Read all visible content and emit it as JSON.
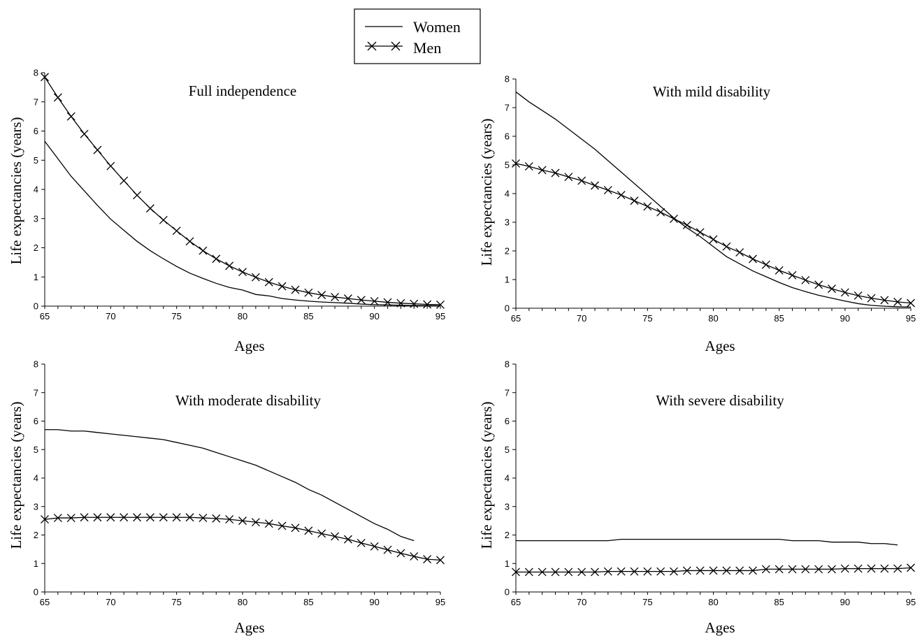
{
  "legend": {
    "entries": [
      {
        "label": "Women",
        "marker": "none"
      },
      {
        "label": "Men",
        "marker": "x"
      }
    ]
  },
  "chart_data": [
    {
      "type": "line",
      "title": "Full independence",
      "xlabel": "Ages",
      "ylabel": "Life expectancies (years)",
      "xlim": [
        65,
        95
      ],
      "ylim": [
        0,
        8
      ],
      "x": [
        65,
        66,
        67,
        68,
        69,
        70,
        71,
        72,
        73,
        74,
        75,
        76,
        77,
        78,
        79,
        80,
        81,
        82,
        83,
        84,
        85,
        86,
        87,
        88,
        89,
        90,
        91,
        92,
        93,
        94,
        95
      ],
      "series": [
        {
          "name": "Women",
          "marker": "none",
          "values": [
            5.65,
            5.05,
            4.45,
            3.95,
            3.45,
            2.98,
            2.6,
            2.22,
            1.9,
            1.62,
            1.36,
            1.13,
            0.95,
            0.78,
            0.64,
            0.55,
            0.4,
            0.35,
            0.26,
            0.21,
            0.17,
            0.14,
            0.12,
            0.1,
            0.07,
            0.05,
            0.04,
            0.03,
            0.02,
            0.02,
            0.01
          ]
        },
        {
          "name": "Men",
          "marker": "x",
          "values": [
            7.85,
            7.15,
            6.5,
            5.9,
            5.35,
            4.8,
            4.3,
            3.8,
            3.35,
            2.95,
            2.58,
            2.22,
            1.9,
            1.62,
            1.38,
            1.17,
            0.99,
            0.82,
            0.68,
            0.56,
            0.46,
            0.38,
            0.31,
            0.26,
            0.21,
            0.17,
            0.13,
            0.1,
            0.08,
            0.06,
            0.05
          ]
        }
      ],
      "y_ticks": [
        "0",
        "1",
        "2",
        "3",
        "4",
        "5",
        "6",
        "7",
        "8"
      ],
      "x_ticks": [
        "65",
        "70",
        "75",
        "80",
        "85",
        "90",
        "95"
      ]
    },
    {
      "type": "line",
      "title": "With mild disability",
      "xlabel": "Ages",
      "ylabel": "Life expectancies (years)",
      "xlim": [
        65,
        95
      ],
      "ylim": [
        0,
        8
      ],
      "x": [
        65,
        66,
        67,
        68,
        69,
        70,
        71,
        72,
        73,
        74,
        75,
        76,
        77,
        78,
        79,
        80,
        81,
        82,
        83,
        84,
        85,
        86,
        87,
        88,
        89,
        90,
        91,
        92,
        93,
        94,
        95
      ],
      "series": [
        {
          "name": "Women",
          "marker": "none",
          "values": [
            7.55,
            7.2,
            6.9,
            6.6,
            6.25,
            5.9,
            5.55,
            5.15,
            4.75,
            4.35,
            3.95,
            3.55,
            3.15,
            2.8,
            2.5,
            2.15,
            1.8,
            1.55,
            1.3,
            1.1,
            0.9,
            0.72,
            0.58,
            0.45,
            0.35,
            0.25,
            0.16,
            0.1,
            0.07,
            0.05,
            0.04
          ]
        },
        {
          "name": "Men",
          "marker": "x",
          "values": [
            5.05,
            4.95,
            4.82,
            4.72,
            4.58,
            4.45,
            4.28,
            4.12,
            3.95,
            3.75,
            3.55,
            3.35,
            3.12,
            2.9,
            2.65,
            2.4,
            2.15,
            1.95,
            1.72,
            1.52,
            1.32,
            1.15,
            0.98,
            0.82,
            0.68,
            0.55,
            0.44,
            0.35,
            0.28,
            0.22,
            0.18
          ]
        }
      ],
      "y_ticks": [
        "0",
        "1",
        "2",
        "3",
        "4",
        "5",
        "6",
        "7",
        "8"
      ],
      "x_ticks": [
        "65",
        "70",
        "75",
        "80",
        "85",
        "90",
        "95"
      ]
    },
    {
      "type": "line",
      "title": "With moderate disability",
      "xlabel": "Ages",
      "ylabel": "Life expectancies (years)",
      "xlim": [
        65,
        95
      ],
      "ylim": [
        0,
        8
      ],
      "x": [
        65,
        66,
        67,
        68,
        69,
        70,
        71,
        72,
        73,
        74,
        75,
        76,
        77,
        78,
        79,
        80,
        81,
        82,
        83,
        84,
        85,
        86,
        87,
        88,
        89,
        90,
        91,
        92,
        93,
        94,
        95
      ],
      "series": [
        {
          "name": "Women",
          "marker": "none",
          "values": [
            5.7,
            5.7,
            5.65,
            5.65,
            5.6,
            5.55,
            5.5,
            5.45,
            5.4,
            5.35,
            5.25,
            5.15,
            5.05,
            4.9,
            4.75,
            4.6,
            4.45,
            4.25,
            4.05,
            3.85,
            3.6,
            3.4,
            3.15,
            2.9,
            2.65,
            2.4,
            2.2,
            1.95,
            1.8,
            null,
            null
          ]
        },
        {
          "name": "Men",
          "marker": "x",
          "values": [
            2.55,
            2.6,
            2.6,
            2.62,
            2.62,
            2.62,
            2.62,
            2.62,
            2.62,
            2.62,
            2.62,
            2.62,
            2.6,
            2.58,
            2.55,
            2.5,
            2.45,
            2.4,
            2.32,
            2.25,
            2.15,
            2.05,
            1.95,
            1.85,
            1.72,
            1.6,
            1.48,
            1.36,
            1.25,
            1.15,
            1.12
          ]
        }
      ],
      "y_ticks": [
        "0",
        "1",
        "2",
        "3",
        "4",
        "5",
        "6",
        "7",
        "8"
      ],
      "x_ticks": [
        "65",
        "70",
        "75",
        "80",
        "85",
        "90",
        "95"
      ]
    },
    {
      "type": "line",
      "title": "With severe disability",
      "xlabel": "Ages",
      "ylabel": "Life expectancies (years)",
      "xlim": [
        65,
        95
      ],
      "ylim": [
        0,
        8
      ],
      "x": [
        65,
        66,
        67,
        68,
        69,
        70,
        71,
        72,
        73,
        74,
        75,
        76,
        77,
        78,
        79,
        80,
        81,
        82,
        83,
        84,
        85,
        86,
        87,
        88,
        89,
        90,
        91,
        92,
        93,
        94,
        95
      ],
      "series": [
        {
          "name": "Women",
          "marker": "none",
          "values": [
            1.8,
            1.8,
            1.8,
            1.8,
            1.8,
            1.8,
            1.8,
            1.8,
            1.85,
            1.85,
            1.85,
            1.85,
            1.85,
            1.85,
            1.85,
            1.85,
            1.85,
            1.85,
            1.85,
            1.85,
            1.85,
            1.8,
            1.8,
            1.8,
            1.75,
            1.75,
            1.75,
            1.7,
            1.7,
            1.65,
            null
          ]
        },
        {
          "name": "Men",
          "marker": "x",
          "values": [
            0.7,
            0.7,
            0.7,
            0.7,
            0.7,
            0.7,
            0.7,
            0.72,
            0.72,
            0.72,
            0.72,
            0.72,
            0.72,
            0.75,
            0.75,
            0.75,
            0.75,
            0.75,
            0.75,
            0.8,
            0.8,
            0.8,
            0.8,
            0.8,
            0.8,
            0.82,
            0.82,
            0.82,
            0.82,
            0.82,
            0.85
          ]
        }
      ],
      "y_ticks": [
        "0",
        "1",
        "2",
        "3",
        "4",
        "5",
        "6",
        "7",
        "8"
      ],
      "x_ticks": [
        "65",
        "70",
        "75",
        "80",
        "85",
        "90",
        "95"
      ]
    }
  ]
}
